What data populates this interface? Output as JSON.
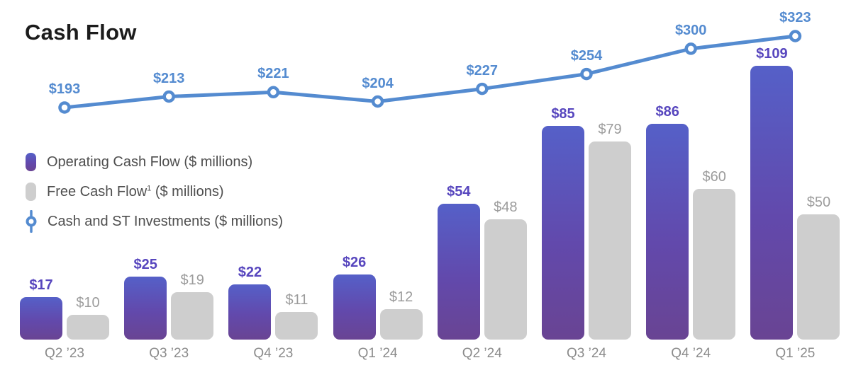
{
  "title": "Cash Flow",
  "legend": {
    "items": [
      {
        "label": "Operating Cash Flow ($ millions)",
        "sup": "",
        "rest": ""
      },
      {
        "label": "Free Cash Flow",
        "sup": "1",
        "rest": " ($ millions)"
      },
      {
        "label": "Cash and ST Investments ($ millions)",
        "sup": "",
        "rest": ""
      }
    ]
  },
  "chart_data": {
    "type": "bar+line",
    "title": "Cash Flow",
    "value_prefix": "$",
    "categories": [
      "Q2 ’23",
      "Q3 ’23",
      "Q4 ’23",
      "Q1 ’24",
      "Q2 ’24",
      "Q3 ’24",
      "Q4 ’24",
      "Q1 ’25"
    ],
    "series": [
      {
        "name": "Operating Cash Flow ($ millions)",
        "type": "bar",
        "values": [
          17,
          25,
          22,
          26,
          54,
          85,
          86,
          109
        ]
      },
      {
        "name": "Free Cash Flow ($ millions)",
        "type": "bar",
        "values": [
          10,
          19,
          11,
          12,
          48,
          79,
          60,
          50
        ]
      },
      {
        "name": "Cash and ST Investments ($ millions)",
        "type": "line",
        "values": [
          193,
          213,
          221,
          204,
          227,
          254,
          300,
          323
        ]
      }
    ],
    "bar_value_labels": {
      "operating": [
        "$17",
        "$25",
        "$22",
        "$26",
        "$54",
        "$85",
        "$86",
        "$109"
      ],
      "free": [
        "$10",
        "$19",
        "$11",
        "$12",
        "$48",
        "$79",
        "$60",
        "$50"
      ],
      "line": [
        "$193",
        "$213",
        "$221",
        "$204",
        "$227",
        "$254",
        "$300",
        "$323"
      ]
    },
    "ylim_bars": [
      0,
      120
    ],
    "ylim_line": [
      0,
      390
    ],
    "grid": false,
    "legend_position": "middle-left",
    "data_labels": true
  },
  "colors": {
    "title_text": "#1C1C1C",
    "legend_text": "#4E4E4E",
    "bar_operating_top": "#5560C8",
    "bar_operating_mid": "#6249AC",
    "bar_operating_bottom": "#694493",
    "bar_free": "#CECECE",
    "line": "#548BD0",
    "label_operating": "#5746BE",
    "label_free": "#9C9C9C",
    "category_text": "#8B8B8B"
  }
}
